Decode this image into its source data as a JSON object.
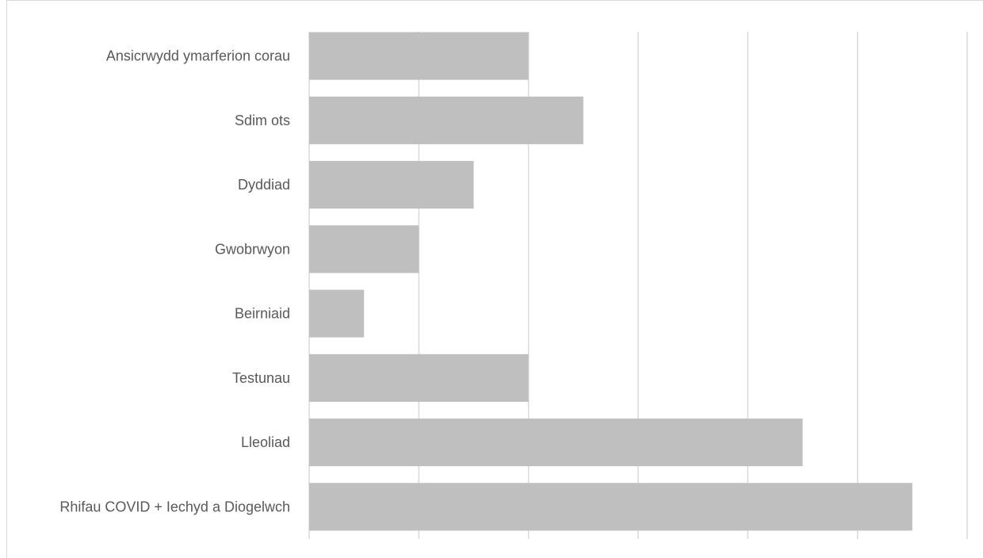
{
  "chart_data": {
    "type": "bar",
    "orientation": "horizontal",
    "title": "",
    "xlabel": "",
    "ylabel": "",
    "categories": [
      "Ansicrwydd ymarferion corau",
      "Sdim ots",
      "Dyddiad",
      "Gwobrwyon",
      "Beirniaid",
      "Testunau",
      "Lleoliad",
      "Rhifau COVID + Iechyd a Diogelwch"
    ],
    "values": [
      4,
      5,
      3,
      2,
      1,
      4,
      9,
      11
    ],
    "xlim": [
      0,
      12
    ],
    "grid": true,
    "legend": "none",
    "tick_labels_visible": false,
    "colors": {
      "bar": "#bfbfbf",
      "grid": "#d9d9d9",
      "label": "#595959",
      "background": "#ffffff"
    }
  }
}
